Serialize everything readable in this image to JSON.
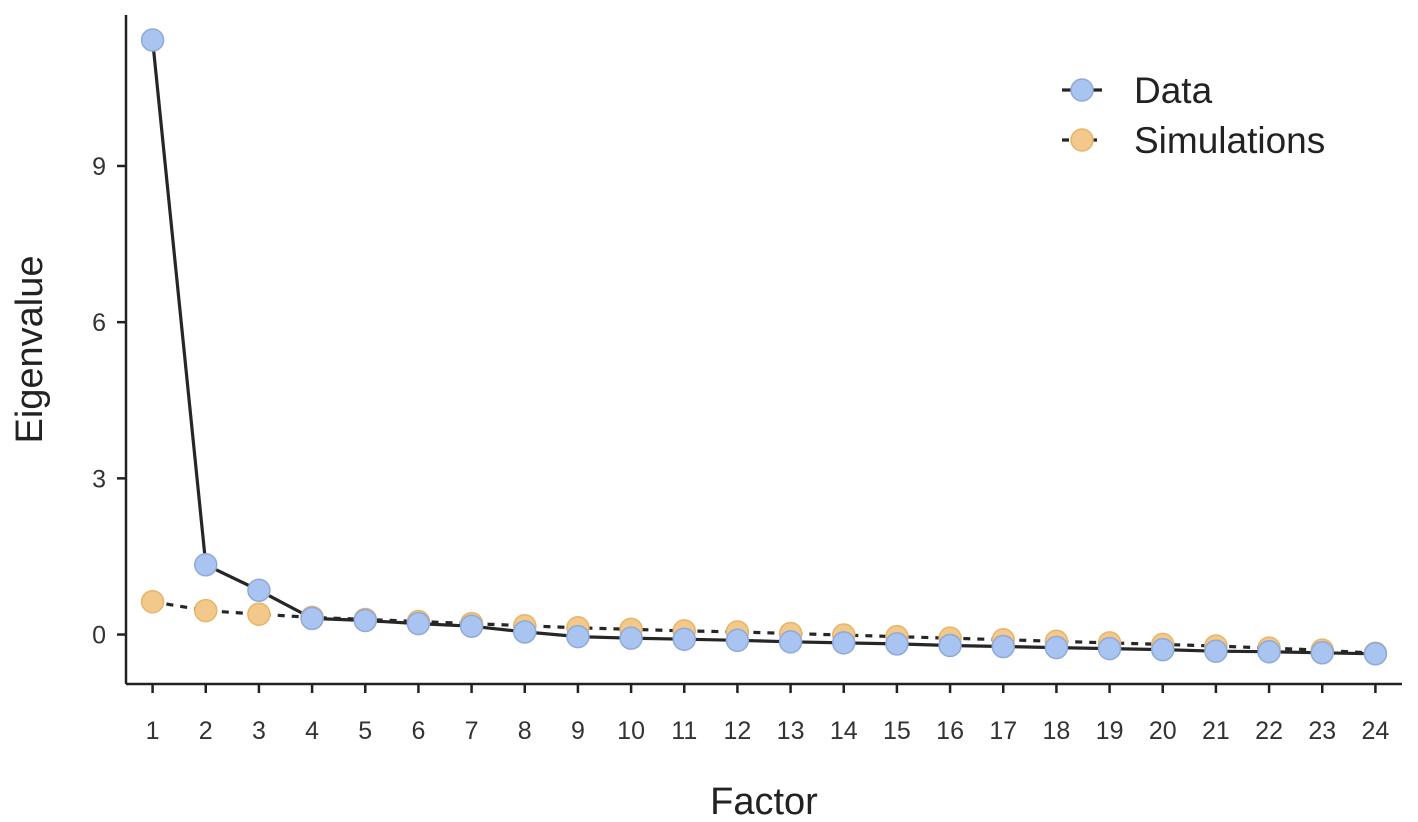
{
  "chart_data": {
    "type": "line",
    "xlabel": "Factor",
    "ylabel": "Eigenvalue",
    "xlim": [
      0.5,
      24.5
    ],
    "ylim": [
      -0.95,
      11.9
    ],
    "x": [
      1,
      2,
      3,
      4,
      5,
      6,
      7,
      8,
      9,
      10,
      11,
      12,
      13,
      14,
      15,
      16,
      17,
      18,
      19,
      20,
      21,
      22,
      23,
      24
    ],
    "x_ticks": [
      "1",
      "2",
      "3",
      "4",
      "5",
      "6",
      "7",
      "8",
      "9",
      "10",
      "11",
      "12",
      "13",
      "14",
      "15",
      "16",
      "17",
      "18",
      "19",
      "20",
      "21",
      "22",
      "23",
      "24"
    ],
    "y_ticks": [
      0,
      3,
      6,
      9
    ],
    "y_tick_labels": [
      "0",
      "3",
      "6",
      "9"
    ],
    "grid": false,
    "legend_position": "top-right",
    "series": [
      {
        "name": "Data",
        "color": "#a9c4f0",
        "line_style": "solid",
        "values": [
          11.42,
          1.34,
          0.85,
          0.31,
          0.27,
          0.21,
          0.16,
          0.05,
          -0.04,
          -0.07,
          -0.09,
          -0.11,
          -0.14,
          -0.16,
          -0.18,
          -0.21,
          -0.23,
          -0.25,
          -0.27,
          -0.29,
          -0.32,
          -0.33,
          -0.35,
          -0.37
        ]
      },
      {
        "name": "Simulations",
        "color": "#f2c98a",
        "line_style": "dotted",
        "values": [
          0.63,
          0.46,
          0.39,
          0.33,
          0.29,
          0.25,
          0.21,
          0.17,
          0.13,
          0.1,
          0.07,
          0.05,
          0.02,
          -0.01,
          -0.04,
          -0.07,
          -0.1,
          -0.13,
          -0.16,
          -0.19,
          -0.22,
          -0.26,
          -0.3,
          -0.36
        ]
      }
    ]
  }
}
